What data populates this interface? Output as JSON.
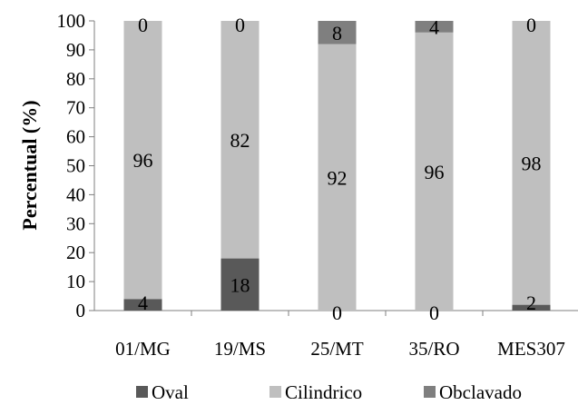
{
  "chart_data": {
    "type": "bar",
    "stacked": true,
    "percent": true,
    "title": "",
    "xlabel": "",
    "ylabel": "Percentual (%)",
    "ylim": [
      0,
      100
    ],
    "yticks": [
      0,
      10,
      20,
      30,
      40,
      50,
      60,
      70,
      80,
      90,
      100
    ],
    "grid": false,
    "legend_position": "bottom",
    "categories": [
      "01/MG",
      "19/MS",
      "25/MT",
      "35/RO",
      "MES307"
    ],
    "series": [
      {
        "name": "Oval",
        "color": "#595959",
        "values": [
          4,
          18,
          0,
          0,
          2
        ],
        "labels": [
          "4",
          "18",
          "0",
          "0",
          "2"
        ]
      },
      {
        "name": "Cilindrico",
        "color": "#bfbfbf",
        "values": [
          96,
          82,
          92,
          96,
          98
        ],
        "labels": [
          "96",
          "82",
          "92",
          "96",
          "98"
        ]
      },
      {
        "name": "Obclavado",
        "color": "#7f7f7f",
        "values": [
          0,
          0,
          8,
          4,
          0
        ],
        "labels": [
          "0",
          "0",
          "8",
          "4",
          "0"
        ]
      }
    ]
  }
}
